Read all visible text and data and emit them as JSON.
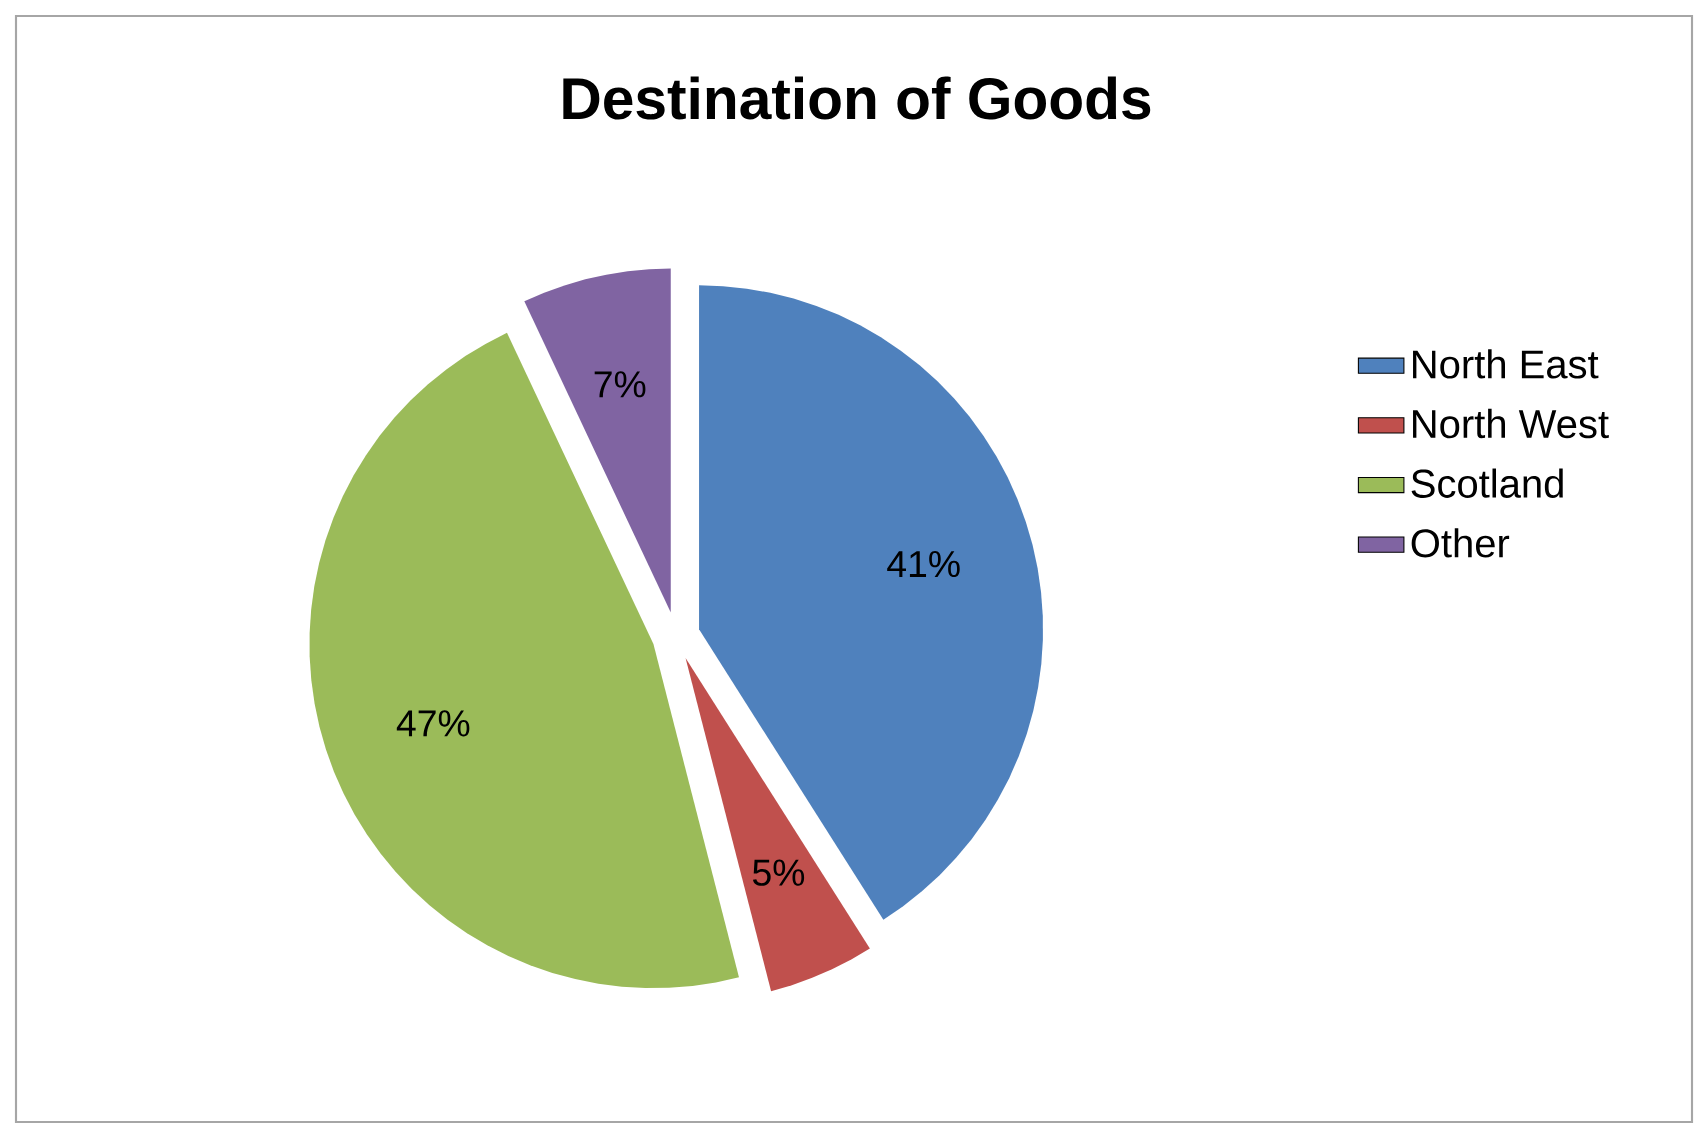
{
  "chart_data": {
    "type": "pie",
    "title": "Destination of Goods",
    "categories": [
      "North East",
      "North West",
      "Scotland",
      "Other"
    ],
    "values": [
      41,
      5,
      47,
      7
    ],
    "colors": [
      "#4f81bd",
      "#c0504d",
      "#9bbb59",
      "#8064a2"
    ],
    "value_labels": [
      "41%",
      "5%",
      "47%",
      "7%"
    ],
    "legend": "right"
  }
}
